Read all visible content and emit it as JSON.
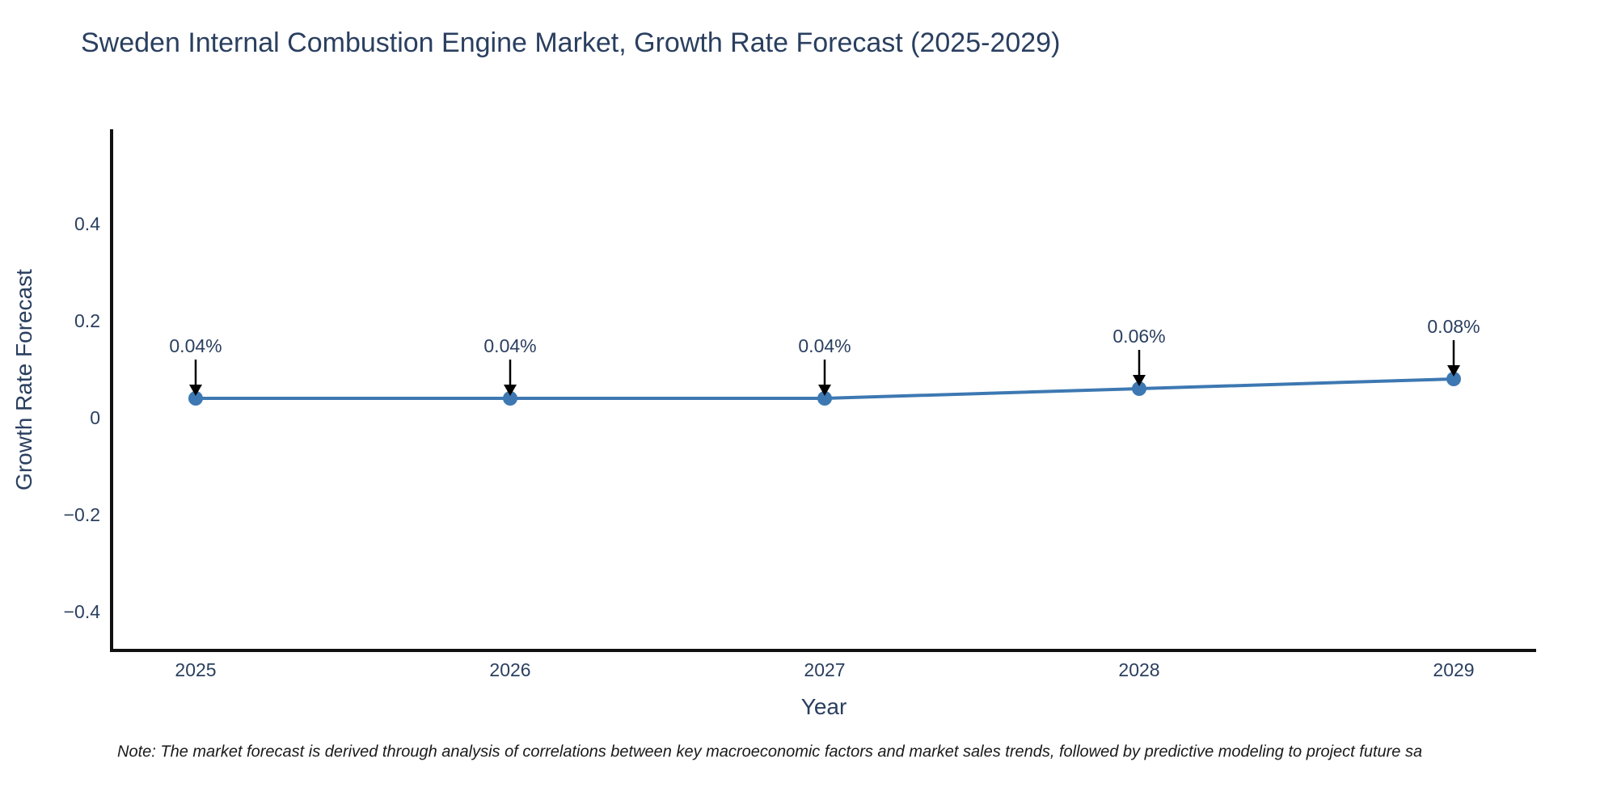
{
  "chart_data": {
    "type": "line",
    "title": "Sweden Internal Combustion Engine Market, Growth Rate Forecast (2025-2029)",
    "xlabel": "Year",
    "ylabel": "Growth Rate Forecast",
    "x": [
      2025,
      2026,
      2027,
      2028,
      2029
    ],
    "x_tick_labels": [
      "2025",
      "2026",
      "2027",
      "2028",
      "2029"
    ],
    "y_tick_values": [
      0.4,
      0.2,
      0,
      -0.2,
      -0.4
    ],
    "y_tick_labels": [
      "0.4",
      "0.2",
      "0",
      "−0.2",
      "−0.4"
    ],
    "series": [
      {
        "name": "Growth Rate Forecast",
        "values": [
          0.04,
          0.04,
          0.04,
          0.06,
          0.08
        ]
      }
    ],
    "point_labels": [
      "0.04%",
      "0.04%",
      "0.04%",
      "0.06%",
      "0.08%"
    ],
    "ylim": [
      -0.48,
      0.59
    ],
    "grid": false,
    "legend": false,
    "annotation_style": "down-arrow-to-point",
    "note": "Note: The market forecast is derived through analysis of correlations between key macroeconomic factors and market sales trends, followed by predictive modeling to project future sa",
    "colors": {
      "line": "#3d78b2",
      "marker": "#3d78b2",
      "text": "#2a3f5f",
      "axis": "#111111",
      "annotation_arrow": "#000000",
      "background": "#ffffff"
    }
  }
}
